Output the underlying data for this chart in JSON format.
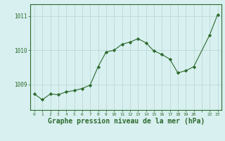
{
  "x": [
    0,
    1,
    2,
    3,
    4,
    5,
    6,
    7,
    8,
    9,
    10,
    11,
    12,
    13,
    14,
    15,
    16,
    17,
    18,
    19,
    20,
    22,
    23
  ],
  "y": [
    1008.72,
    1008.55,
    1008.72,
    1008.7,
    1008.78,
    1008.82,
    1008.88,
    1008.98,
    1009.52,
    1009.95,
    1010.0,
    1010.18,
    1010.24,
    1010.34,
    1010.22,
    1009.98,
    1009.88,
    1009.74,
    1009.34,
    1009.4,
    1009.52,
    1010.45,
    1011.05
  ],
  "line_color": "#2d6a2d",
  "marker": "D",
  "marker_size": 2.2,
  "bg_color": "#d8f0f0",
  "grid_color": "#b8d4d4",
  "border_color": "#2d6a2d",
  "xlabel": "Graphe pression niveau de la mer (hPa)",
  "xlabel_fontsize": 7,
  "yticks": [
    1009,
    1010,
    1011
  ],
  "ylim": [
    1008.25,
    1011.35
  ],
  "xlim": [
    -0.5,
    23.5
  ]
}
